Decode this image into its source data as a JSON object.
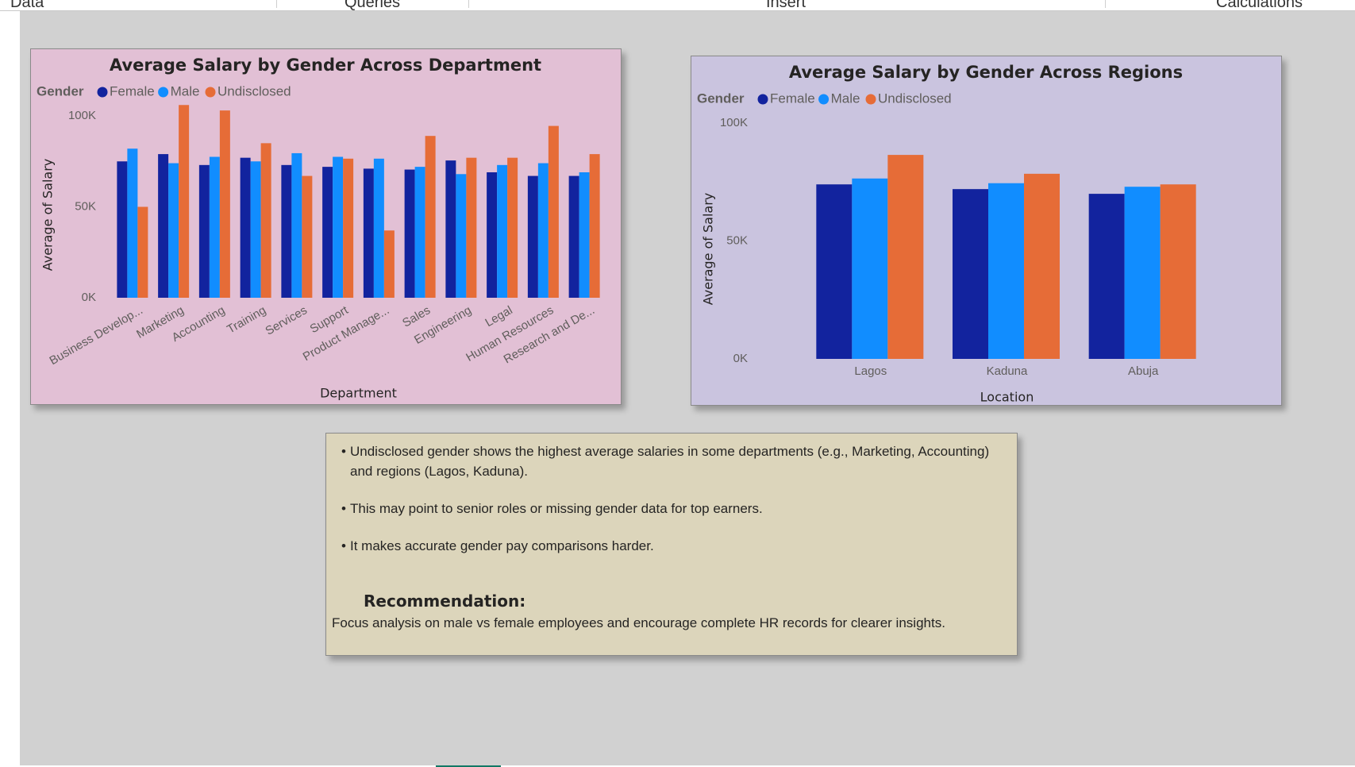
{
  "ribbon": {
    "tabs": [
      "Data",
      "Queries",
      "Insert",
      "Calculations"
    ]
  },
  "colors": {
    "female": "#12239e",
    "male": "#118dff",
    "undisclosed": "#e66c37"
  },
  "chart_data": [
    {
      "type": "bar",
      "title": "Average Salary by Gender Across Department",
      "legend_title": "Gender",
      "legend_position": "top-left",
      "xlabel": "Department",
      "ylabel": "Average of Salary",
      "ylim": [
        0,
        100000
      ],
      "yticks": [
        0,
        50000,
        100000
      ],
      "ytick_labels": [
        "0K",
        "50K",
        "100K"
      ],
      "grid": false,
      "categories": [
        "Business Develop...",
        "Marketing",
        "Accounting",
        "Training",
        "Services",
        "Support",
        "Product Manage...",
        "Sales",
        "Engineering",
        "Legal",
        "Human Resources",
        "Research and De..."
      ],
      "series": [
        {
          "name": "Female",
          "color": "#12239e",
          "values": [
            75000,
            79000,
            73000,
            77000,
            73000,
            72000,
            71000,
            70500,
            75500,
            69000,
            67000,
            67000
          ]
        },
        {
          "name": "Male",
          "color": "#118dff",
          "values": [
            82000,
            74000,
            77500,
            75000,
            79500,
            77500,
            76500,
            72000,
            68000,
            73000,
            74000,
            69000
          ]
        },
        {
          "name": "Undisclosed",
          "color": "#e66c37",
          "values": [
            50000,
            106000,
            103000,
            85000,
            67000,
            76500,
            37000,
            89000,
            77000,
            77000,
            94500,
            79000
          ]
        }
      ]
    },
    {
      "type": "bar",
      "title": "Average Salary by Gender Across Regions",
      "legend_title": "Gender",
      "legend_position": "top-left",
      "xlabel": "Location",
      "ylabel": "Average of Salary",
      "ylim": [
        0,
        100000
      ],
      "yticks": [
        0,
        50000,
        100000
      ],
      "ytick_labels": [
        "0K",
        "50K",
        "100K"
      ],
      "grid": false,
      "categories": [
        "Lagos",
        "Kaduna",
        "Abuja"
      ],
      "series": [
        {
          "name": "Female",
          "color": "#12239e",
          "values": [
            74000,
            72000,
            70000
          ]
        },
        {
          "name": "Male",
          "color": "#118dff",
          "values": [
            76500,
            74500,
            73000
          ]
        },
        {
          "name": "Undisclosed",
          "color": "#e66c37",
          "values": [
            86500,
            78500,
            74000
          ]
        }
      ]
    }
  ],
  "notes": {
    "bullets": [
      "Undisclosed gender shows the highest average salaries in some departments (e.g., Marketing, Accounting) and regions (Lagos, Kaduna).",
      "This may point to senior roles or missing gender data for top earners.",
      "It makes accurate gender pay comparisons harder."
    ],
    "recommendation_title": "Recommendation:",
    "recommendation_text": "Focus analysis on male vs female employees and encourage complete HR records for clearer insights."
  }
}
